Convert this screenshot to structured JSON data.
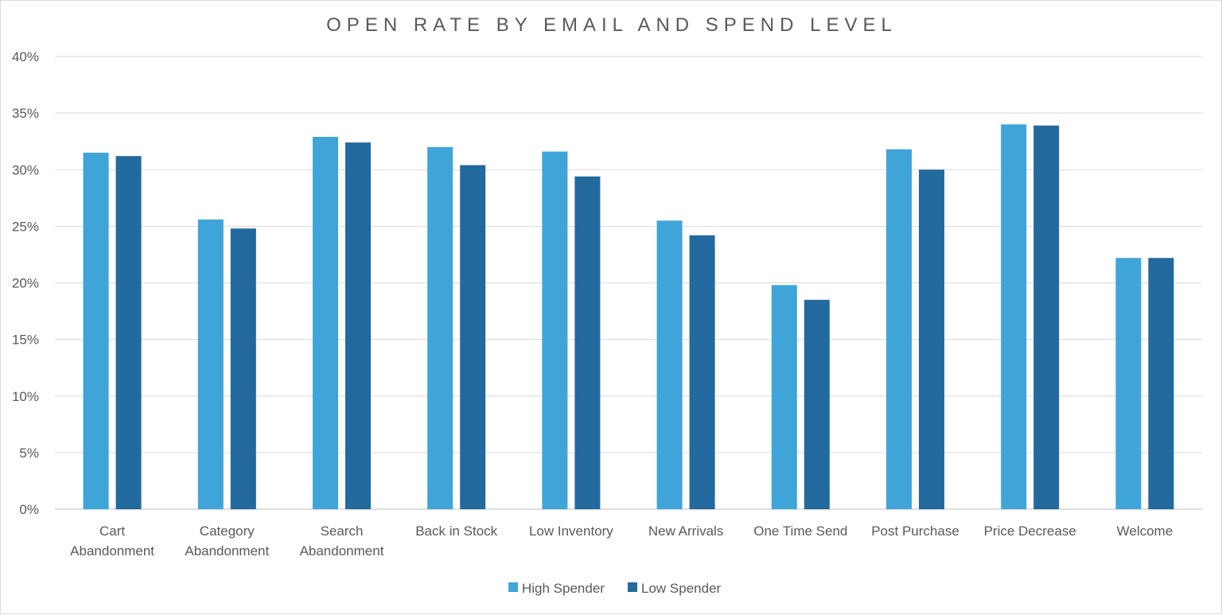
{
  "chart_data": {
    "type": "bar",
    "title": "OPEN RATE BY EMAIL AND SPEND LEVEL",
    "xlabel": "",
    "ylabel": "",
    "ylim": [
      0,
      40
    ],
    "yticks": [
      "0%",
      "5%",
      "10%",
      "15%",
      "20%",
      "25%",
      "30%",
      "35%",
      "40%"
    ],
    "grid": true,
    "legend_position": "bottom",
    "categories": [
      [
        "Cart",
        "Abandonment"
      ],
      [
        "Category",
        "Abandonment"
      ],
      [
        "Search",
        "Abandonment"
      ],
      [
        "Back in Stock"
      ],
      [
        "Low Inventory"
      ],
      [
        "New Arrivals"
      ],
      [
        "One Time Send"
      ],
      [
        "Post Purchase"
      ],
      [
        "Price Decrease"
      ],
      [
        "Welcome"
      ]
    ],
    "series": [
      {
        "name": "High Spender",
        "color": "#3fa5d9",
        "values": [
          31.5,
          25.6,
          32.9,
          32.0,
          31.6,
          25.5,
          19.8,
          31.8,
          34.0,
          22.2
        ]
      },
      {
        "name": "Low Spender",
        "color": "#22699e",
        "values": [
          31.2,
          24.8,
          32.4,
          30.4,
          29.4,
          24.2,
          18.5,
          30.0,
          33.9,
          22.2
        ]
      }
    ]
  }
}
